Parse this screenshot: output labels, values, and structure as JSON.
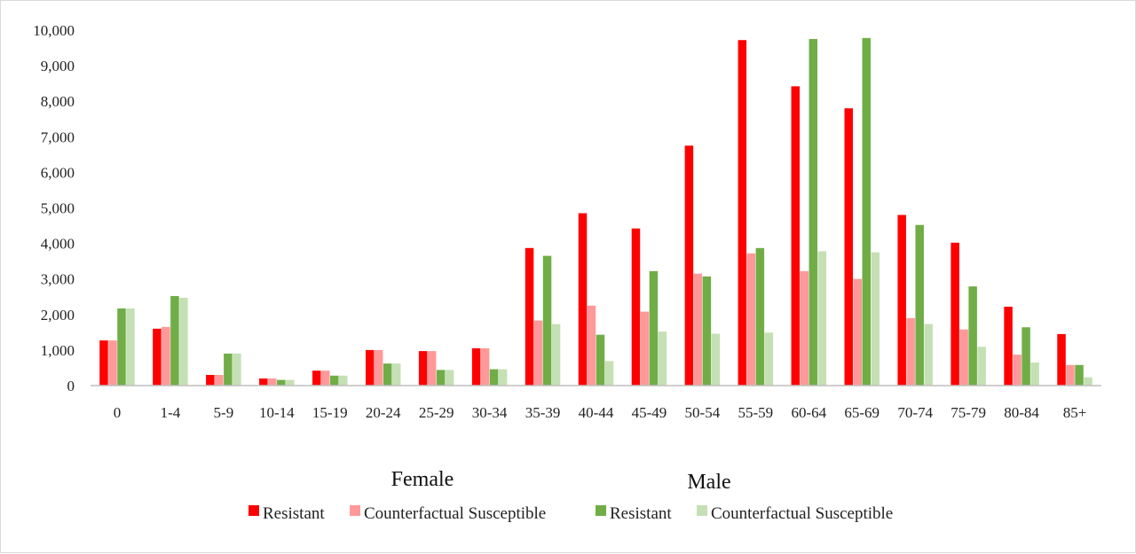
{
  "chart_data": {
    "type": "bar",
    "categories": [
      "0",
      "1-4",
      "5-9",
      "10-14",
      "15-19",
      "20-24",
      "25-29",
      "30-34",
      "35-39",
      "40-44",
      "45-49",
      "50-54",
      "55-59",
      "60-64",
      "65-69",
      "70-74",
      "75-79",
      "80-84",
      "85+"
    ],
    "series": [
      {
        "name": "Resistant",
        "group": "Female",
        "color": "#ff0000",
        "values": [
          1270,
          1600,
          300,
          200,
          420,
          1000,
          970,
          1050,
          3870,
          4850,
          4420,
          6750,
          9720,
          8420,
          7800,
          4800,
          4020,
          2220,
          1450
        ]
      },
      {
        "name": "Counterfactual Susceptible",
        "group": "Female",
        "color": "#ff9999",
        "values": [
          1270,
          1650,
          300,
          200,
          420,
          1000,
          970,
          1050,
          1830,
          2250,
          2080,
          3150,
          3720,
          3220,
          3000,
          1900,
          1580,
          870,
          580
        ]
      },
      {
        "name": "Resistant",
        "group": "Male",
        "color": "#70ad47",
        "values": [
          2170,
          2520,
          900,
          160,
          280,
          620,
          440,
          460,
          3650,
          1430,
          3220,
          3070,
          3870,
          9750,
          9780,
          4520,
          2790,
          1640,
          580
        ]
      },
      {
        "name": "Counterfactual Susceptible",
        "group": "Male",
        "color": "#c5e0b4",
        "values": [
          2170,
          2470,
          900,
          160,
          280,
          620,
          440,
          460,
          1730,
          690,
          1520,
          1460,
          1490,
          3780,
          3750,
          1730,
          1090,
          650,
          230
        ]
      }
    ],
    "ylim": [
      0,
      10000
    ],
    "yticks": [
      "0",
      "1,000",
      "2,000",
      "3,000",
      "4,000",
      "5,000",
      "6,000",
      "7,000",
      "8,000",
      "9,000",
      "10,000"
    ],
    "groups": [
      "Female",
      "Male"
    ],
    "legend_position": "bottom",
    "grid": false
  }
}
